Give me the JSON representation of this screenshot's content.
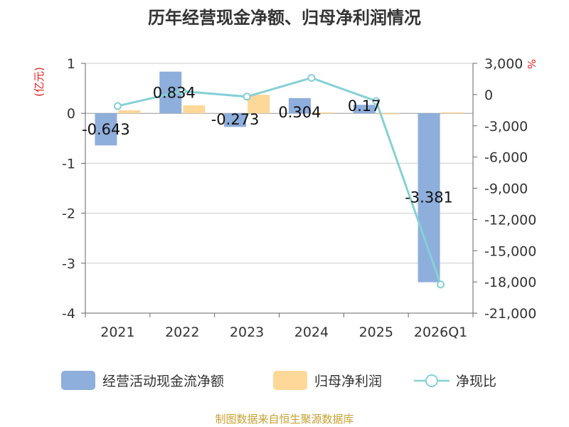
{
  "chart_data": {
    "type": "bar+line",
    "title": "历年经营现金净额、归母净利润情况",
    "left_axis_unit": "(亿元)",
    "right_axis_unit": "%",
    "categories": [
      "2021",
      "2022",
      "2023",
      "2024",
      "2025",
      "2026Q1"
    ],
    "left_ylim": [
      -4,
      1
    ],
    "left_ticks": [
      "1",
      "0",
      "-1",
      "-2",
      "-3",
      "-4"
    ],
    "right_ylim": [
      -21000,
      3000
    ],
    "right_ticks": [
      "3,000",
      "0",
      "-3,000",
      "-6,000",
      "-9,000",
      "-12,000",
      "-15,000",
      "-18,000",
      "-21,000"
    ],
    "grid": true,
    "legend_position": "bottom",
    "series": [
      {
        "name": "经营活动现金流净额",
        "type": "bar",
        "axis": "left",
        "color": "#8eaedb",
        "values": [
          -0.643,
          0.834,
          -0.273,
          0.304,
          0.17,
          -3.381
        ],
        "labels": [
          "-0.643",
          "0.834",
          "-0.273",
          "0.304",
          "0.17",
          "-3.381"
        ]
      },
      {
        "name": "归母净利润",
        "type": "bar",
        "axis": "left",
        "color": "#fdd899",
        "values": [
          0.06,
          0.16,
          0.37,
          0.02,
          -0.02,
          0.02
        ]
      },
      {
        "name": "净现比",
        "type": "line",
        "axis": "right",
        "color": "#86d0d6",
        "values": [
          -1100,
          320,
          -200,
          1600,
          -620,
          -18250
        ]
      }
    ],
    "source": "制图数据来自恒生聚源数据库"
  }
}
